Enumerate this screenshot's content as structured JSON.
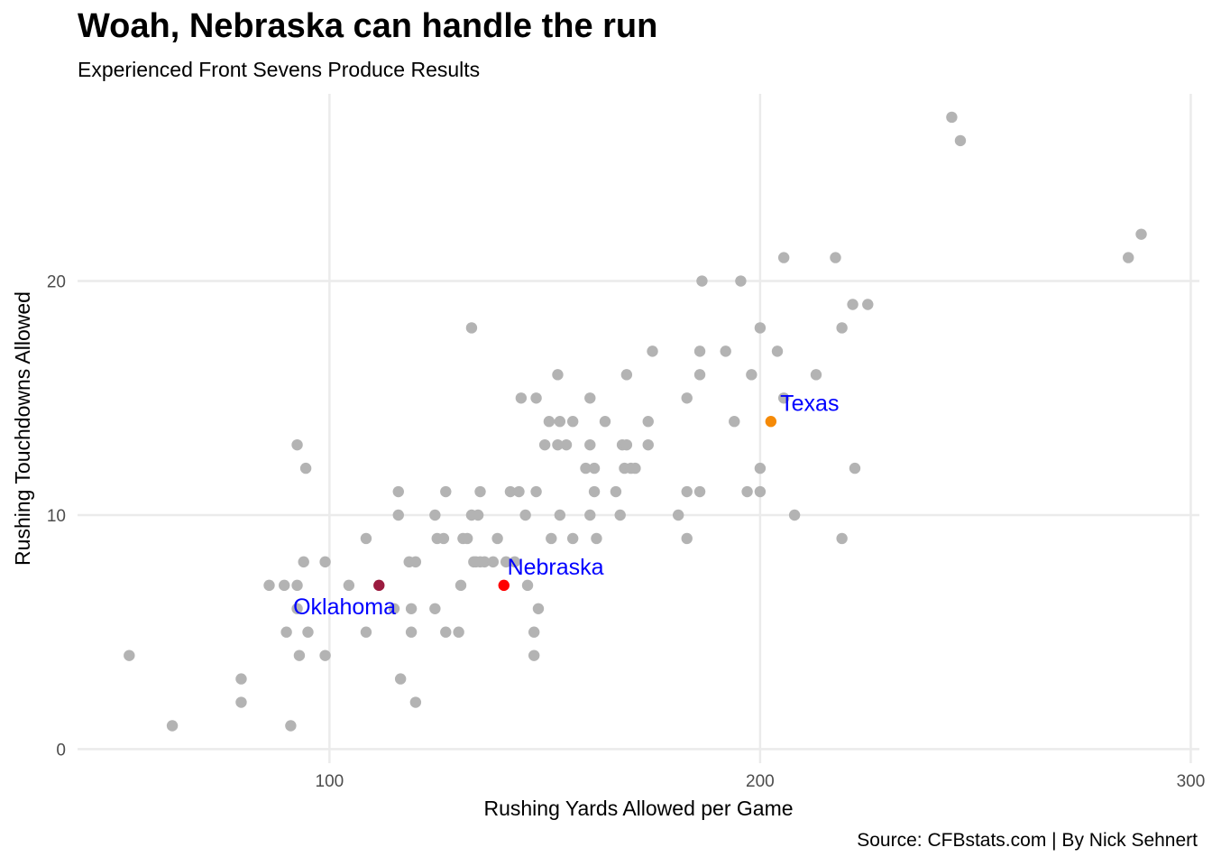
{
  "chart_data": {
    "type": "scatter",
    "title": "Woah, Nebraska can handle the run",
    "subtitle": "Experienced Front Sevens Produce Results",
    "xlabel": "Rushing Yards Allowed per Game",
    "ylabel": "Rushing Touchdowns Allowed",
    "caption": "Source: CFBstats.com | By Nick Sehnert",
    "xlim": [
      41.5,
      302
    ],
    "ylim": [
      -0.6,
      28
    ],
    "xticks": [
      100,
      200,
      300
    ],
    "yticks": [
      0,
      10,
      20
    ],
    "grid": true,
    "colors": {
      "default": "#b3b3b3",
      "Nebraska": "#ff0000",
      "Texas": "#f58a07",
      "Oklahoma": "#9b1b3f",
      "annotation": "#0000ff",
      "grid": "#ebebeb"
    },
    "points": [
      {
        "x": 53.5,
        "y": 4
      },
      {
        "x": 63.5,
        "y": 1
      },
      {
        "x": 79.5,
        "y": 3
      },
      {
        "x": 79.5,
        "y": 2
      },
      {
        "x": 86,
        "y": 7
      },
      {
        "x": 89.5,
        "y": 7
      },
      {
        "x": 90,
        "y": 5
      },
      {
        "x": 91,
        "y": 1
      },
      {
        "x": 92.5,
        "y": 13
      },
      {
        "x": 92.5,
        "y": 7
      },
      {
        "x": 92.5,
        "y": 6
      },
      {
        "x": 93,
        "y": 4
      },
      {
        "x": 94,
        "y": 8
      },
      {
        "x": 94.5,
        "y": 12
      },
      {
        "x": 95,
        "y": 5
      },
      {
        "x": 99,
        "y": 8
      },
      {
        "x": 99,
        "y": 4
      },
      {
        "x": 104.5,
        "y": 7
      },
      {
        "x": 108.5,
        "y": 9
      },
      {
        "x": 108.5,
        "y": 5
      },
      {
        "x": 115,
        "y": 6
      },
      {
        "x": 116,
        "y": 11
      },
      {
        "x": 116,
        "y": 10
      },
      {
        "x": 116.5,
        "y": 3
      },
      {
        "x": 118.5,
        "y": 8
      },
      {
        "x": 119,
        "y": 6
      },
      {
        "x": 119,
        "y": 5
      },
      {
        "x": 120,
        "y": 8
      },
      {
        "x": 120,
        "y": 2
      },
      {
        "x": 124.5,
        "y": 10
      },
      {
        "x": 124.5,
        "y": 6
      },
      {
        "x": 125,
        "y": 9
      },
      {
        "x": 126.5,
        "y": 9
      },
      {
        "x": 127,
        "y": 11
      },
      {
        "x": 127,
        "y": 5
      },
      {
        "x": 130,
        "y": 5
      },
      {
        "x": 130.5,
        "y": 7
      },
      {
        "x": 131,
        "y": 9
      },
      {
        "x": 132,
        "y": 9
      },
      {
        "x": 133,
        "y": 18
      },
      {
        "x": 133,
        "y": 10
      },
      {
        "x": 133.5,
        "y": 8
      },
      {
        "x": 134,
        "y": 8
      },
      {
        "x": 134.5,
        "y": 10
      },
      {
        "x": 135,
        "y": 11
      },
      {
        "x": 135,
        "y": 8
      },
      {
        "x": 136,
        "y": 8
      },
      {
        "x": 138,
        "y": 8
      },
      {
        "x": 139,
        "y": 9
      },
      {
        "x": 141,
        "y": 8
      },
      {
        "x": 142,
        "y": 11
      },
      {
        "x": 143,
        "y": 8
      },
      {
        "x": 144,
        "y": 11
      },
      {
        "x": 144.5,
        "y": 15
      },
      {
        "x": 145.5,
        "y": 10
      },
      {
        "x": 146,
        "y": 7
      },
      {
        "x": 147.5,
        "y": 4
      },
      {
        "x": 148,
        "y": 15
      },
      {
        "x": 148,
        "y": 11
      },
      {
        "x": 147.5,
        "y": 5
      },
      {
        "x": 148.5,
        "y": 6
      },
      {
        "x": 150,
        "y": 13
      },
      {
        "x": 151,
        "y": 14
      },
      {
        "x": 151.5,
        "y": 9
      },
      {
        "x": 153,
        "y": 16
      },
      {
        "x": 153,
        "y": 13
      },
      {
        "x": 153.5,
        "y": 14
      },
      {
        "x": 153.5,
        "y": 10
      },
      {
        "x": 155,
        "y": 13
      },
      {
        "x": 156.5,
        "y": 14
      },
      {
        "x": 156.5,
        "y": 9
      },
      {
        "x": 159.5,
        "y": 12
      },
      {
        "x": 160.5,
        "y": 15
      },
      {
        "x": 160.5,
        "y": 13
      },
      {
        "x": 160.5,
        "y": 10
      },
      {
        "x": 161.5,
        "y": 12
      },
      {
        "x": 161.5,
        "y": 11
      },
      {
        "x": 162,
        "y": 9
      },
      {
        "x": 164,
        "y": 14
      },
      {
        "x": 166.5,
        "y": 11
      },
      {
        "x": 167.5,
        "y": 10
      },
      {
        "x": 168,
        "y": 13
      },
      {
        "x": 168.5,
        "y": 12
      },
      {
        "x": 169,
        "y": 13
      },
      {
        "x": 169,
        "y": 16
      },
      {
        "x": 170,
        "y": 12
      },
      {
        "x": 171,
        "y": 12
      },
      {
        "x": 174,
        "y": 14
      },
      {
        "x": 174,
        "y": 13
      },
      {
        "x": 175,
        "y": 17
      },
      {
        "x": 181,
        "y": 10
      },
      {
        "x": 183,
        "y": 15
      },
      {
        "x": 183,
        "y": 11
      },
      {
        "x": 183,
        "y": 9
      },
      {
        "x": 186,
        "y": 17
      },
      {
        "x": 186,
        "y": 16
      },
      {
        "x": 186,
        "y": 11
      },
      {
        "x": 186.5,
        "y": 20
      },
      {
        "x": 192,
        "y": 17
      },
      {
        "x": 194,
        "y": 14
      },
      {
        "x": 195.5,
        "y": 20
      },
      {
        "x": 197,
        "y": 11
      },
      {
        "x": 198,
        "y": 16
      },
      {
        "x": 200,
        "y": 18
      },
      {
        "x": 200,
        "y": 12
      },
      {
        "x": 200,
        "y": 11
      },
      {
        "x": 204,
        "y": 17
      },
      {
        "x": 205.5,
        "y": 21
      },
      {
        "x": 205.5,
        "y": 15
      },
      {
        "x": 208,
        "y": 10
      },
      {
        "x": 213,
        "y": 16
      },
      {
        "x": 217.5,
        "y": 21
      },
      {
        "x": 219,
        "y": 18
      },
      {
        "x": 219,
        "y": 9
      },
      {
        "x": 221.5,
        "y": 19
      },
      {
        "x": 222,
        "y": 12
      },
      {
        "x": 225,
        "y": 19
      },
      {
        "x": 244.5,
        "y": 27
      },
      {
        "x": 246.5,
        "y": 26
      },
      {
        "x": 285.5,
        "y": 21
      },
      {
        "x": 288.5,
        "y": 22
      },
      {
        "x": 111.5,
        "y": 7,
        "team": "Oklahoma"
      },
      {
        "x": 140.5,
        "y": 7,
        "team": "Nebraska"
      },
      {
        "x": 202.5,
        "y": 14,
        "team": "Texas"
      }
    ],
    "annotations": [
      {
        "label": "Oklahoma",
        "x": 103.5,
        "y": 6.1
      },
      {
        "label": "Nebraska",
        "x": 152.5,
        "y": 7.8
      },
      {
        "label": "Texas",
        "x": 211.5,
        "y": 14.8
      }
    ]
  }
}
